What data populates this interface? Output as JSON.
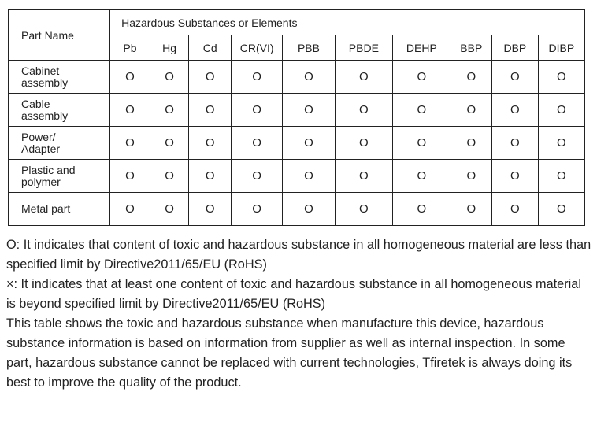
{
  "table": {
    "part_header": "Part Name",
    "group_header": "Hazardous Substances or Elements",
    "columns": [
      "Pb",
      "Hg",
      "Cd",
      "CR(VI)",
      "PBB",
      "PBDE",
      "DEHP",
      "BBP",
      "DBP",
      "DIBP"
    ],
    "rows": [
      {
        "part": [
          "Cabinet",
          "assembly"
        ],
        "values": [
          "O",
          "O",
          "O",
          "O",
          "O",
          "O",
          "O",
          "O",
          "O",
          "O"
        ]
      },
      {
        "part": [
          "Cable",
          "assembly"
        ],
        "values": [
          "O",
          "O",
          "O",
          "O",
          "O",
          "O",
          "O",
          "O",
          "O",
          "O"
        ]
      },
      {
        "part": [
          "Power/",
          "Adapter"
        ],
        "values": [
          "O",
          "O",
          "O",
          "O",
          "O",
          "O",
          "O",
          "O",
          "O",
          "O"
        ]
      },
      {
        "part": [
          "Plastic and",
          "polymer"
        ],
        "values": [
          "O",
          "O",
          "O",
          "O",
          "O",
          "O",
          "O",
          "O",
          "O",
          "O"
        ]
      },
      {
        "part": [
          "Metal part"
        ],
        "values": [
          "O",
          "O",
          "O",
          "O",
          "O",
          "O",
          "O",
          "O",
          "O",
          "O"
        ]
      }
    ]
  },
  "notes": [
    "O: It indicates that content of toxic and hazardous substance in all homogeneous material are less than specified limit by Directive2011/65/EU (RoHS)",
    "×: It indicates that at least one content of toxic and hazardous substance in all homogeneous material is beyond specified limit by Directive2011/65/EU (RoHS)",
    "This table shows the toxic and hazardous substance when manufacture this device, hazardous substance information is based on information from supplier as well as internal inspection. In some part, hazardous substance cannot be replaced with current technologies, Tfiretek is always doing its best to improve the quality of the product."
  ]
}
